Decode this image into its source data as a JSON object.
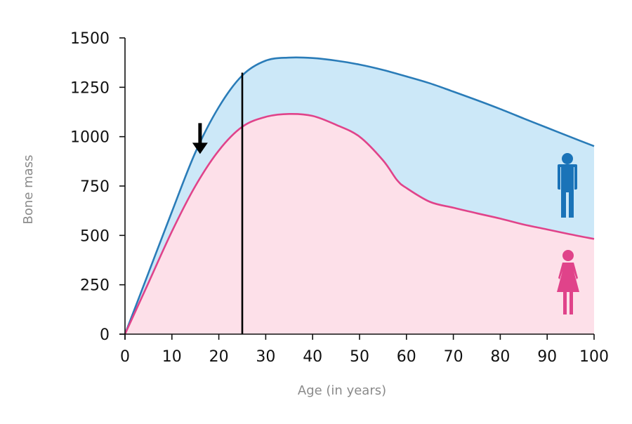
{
  "chart_data": {
    "type": "area",
    "title": "",
    "xlabel": "Age (in years)",
    "ylabel": "Bone mass",
    "xlim": [
      0,
      100
    ],
    "ylim": [
      0,
      1500
    ],
    "x_ticks": [
      0,
      10,
      20,
      30,
      40,
      50,
      60,
      70,
      80,
      90,
      100
    ],
    "y_ticks": [
      0,
      250,
      500,
      750,
      1000,
      1250,
      1500
    ],
    "grid": false,
    "legend": "icons-right",
    "series": [
      {
        "name": "",
        "icon": "male-icon",
        "color": "#2a7cb8",
        "fill": "#cce8f8",
        "x": [
          0,
          5,
          10,
          15,
          20,
          25,
          30,
          35,
          40,
          45,
          50,
          55,
          60,
          65,
          70,
          75,
          80,
          85,
          90,
          95,
          100
        ],
        "y": [
          0,
          310,
          620,
          920,
          1150,
          1310,
          1385,
          1400,
          1398,
          1385,
          1365,
          1338,
          1305,
          1270,
          1228,
          1185,
          1140,
          1092,
          1045,
          998,
          952
        ]
      },
      {
        "name": "",
        "icon": "female-icon",
        "color": "#e0438a",
        "fill": "#fde0e9",
        "x": [
          0,
          5,
          10,
          15,
          20,
          25,
          30,
          35,
          40,
          45,
          50,
          55,
          58,
          60,
          65,
          70,
          75,
          80,
          85,
          90,
          95,
          100
        ],
        "y": [
          0,
          260,
          520,
          750,
          930,
          1050,
          1100,
          1115,
          1105,
          1060,
          1000,
          880,
          780,
          740,
          670,
          640,
          612,
          585,
          555,
          530,
          505,
          482
        ]
      }
    ],
    "annotations": [
      {
        "type": "arrow",
        "x": 16,
        "y": 905
      },
      {
        "type": "vline",
        "x": 25
      }
    ]
  },
  "colors": {
    "axis": "#111111",
    "male_line": "#2a7cb8",
    "male_fill": "#cce8f8",
    "female_line": "#e0438a",
    "female_fill": "#fde0e9",
    "male_icon": "#1a73b8",
    "female_icon": "#e0438a"
  }
}
